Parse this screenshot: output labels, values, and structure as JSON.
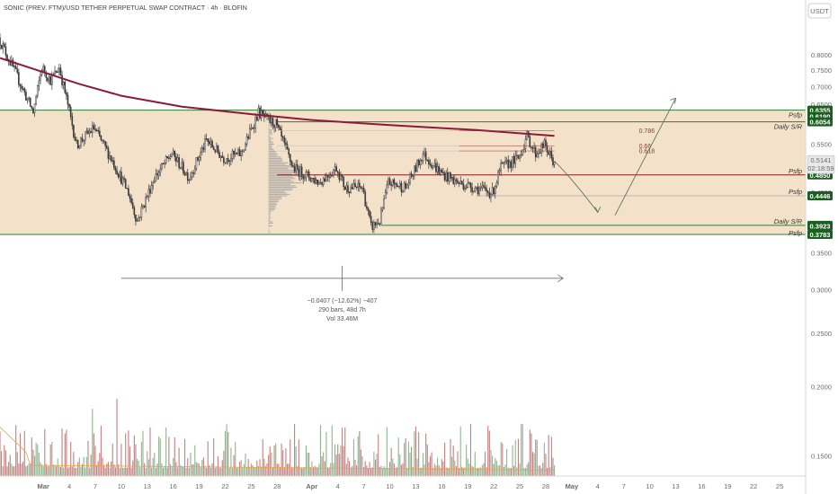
{
  "chart_data": {
    "type": "candlestick",
    "title": "SONIC (PREV. FTM)/USD TETHER PERPETUAL SWAP CONTRACT · 4h · BLOFIN",
    "currency": "USDT",
    "y_scale": "log",
    "ylim": [
      0.138,
      0.92
    ],
    "y_ticks": [
      "0.8000",
      "0.7500",
      "0.7000",
      "0.6500",
      "0.5500",
      "0.5000",
      "0.4500",
      "0.3500",
      "0.3000",
      "0.2500",
      "0.2000",
      "0.1500"
    ],
    "x_ticks": [
      "Mar",
      "4",
      "7",
      "10",
      "13",
      "16",
      "19",
      "22",
      "25",
      "28",
      "Apr",
      "4",
      "7",
      "10",
      "13",
      "16",
      "19",
      "22",
      "25",
      "28",
      "May",
      "4",
      "7",
      "10",
      "13",
      "16",
      "19",
      "22",
      "25"
    ],
    "date_range": [
      "2025-02-24",
      "2025-05-28"
    ],
    "last_candle_date": "2025-04-29",
    "price_path": [
      [
        "2025-02-24",
        0.86
      ],
      [
        "2025-02-26",
        0.74
      ],
      [
        "2025-02-28",
        0.63
      ],
      [
        "2025-03-01",
        0.76
      ],
      [
        "2025-03-02",
        0.72
      ],
      [
        "2025-03-03",
        0.76
      ],
      [
        "2025-03-04",
        0.65
      ],
      [
        "2025-03-05",
        0.55
      ],
      [
        "2025-03-07",
        0.59
      ],
      [
        "2025-03-09",
        0.52
      ],
      [
        "2025-03-11",
        0.45
      ],
      [
        "2025-03-12",
        0.4
      ],
      [
        "2025-03-14",
        0.48
      ],
      [
        "2025-03-16",
        0.53
      ],
      [
        "2025-03-18",
        0.48
      ],
      [
        "2025-03-20",
        0.56
      ],
      [
        "2025-03-22",
        0.52
      ],
      [
        "2025-03-24",
        0.53
      ],
      [
        "2025-03-26",
        0.63
      ],
      [
        "2025-03-27",
        0.61
      ],
      [
        "2025-03-28",
        0.6
      ],
      [
        "2025-03-30",
        0.5
      ],
      [
        "2025-04-02",
        0.47
      ],
      [
        "2025-04-04",
        0.5
      ],
      [
        "2025-04-05",
        0.46
      ],
      [
        "2025-04-07",
        0.46
      ],
      [
        "2025-04-08",
        0.39
      ],
      [
        "2025-04-09",
        0.4
      ],
      [
        "2025-04-10",
        0.47
      ],
      [
        "2025-04-12",
        0.46
      ],
      [
        "2025-04-14",
        0.53
      ],
      [
        "2025-04-16",
        0.49
      ],
      [
        "2025-04-18",
        0.47
      ],
      [
        "2025-04-20",
        0.46
      ],
      [
        "2025-04-22",
        0.45
      ],
      [
        "2025-04-23",
        0.5
      ],
      [
        "2025-04-25",
        0.52
      ],
      [
        "2025-04-26",
        0.57
      ],
      [
        "2025-04-27",
        0.53
      ],
      [
        "2025-04-28",
        0.55
      ],
      [
        "2025-04-29",
        0.514
      ]
    ],
    "moving_average": [
      [
        "2025-02-24",
        0.79
      ],
      [
        "2025-03-01",
        0.745
      ],
      [
        "2025-03-05",
        0.71
      ],
      [
        "2025-03-10",
        0.675
      ],
      [
        "2025-03-17",
        0.645
      ],
      [
        "2025-03-25",
        0.625
      ],
      [
        "2025-04-01",
        0.61
      ],
      [
        "2025-04-10",
        0.597
      ],
      [
        "2025-04-20",
        0.585
      ],
      [
        "2025-04-29",
        0.571
      ]
    ],
    "volume_max": 25000000,
    "last_price": "0.5141",
    "countdown": "02:18:59",
    "range_box": {
      "top": 0.6355,
      "bottom": 0.3783,
      "x_end": "2025-04-29"
    },
    "volume_profile": {
      "start": "2025-03-27",
      "max_width_days": 4.2
    },
    "levels": [
      {
        "price": 0.6355,
        "badge": "0.6355",
        "label": "Psfp",
        "color": "#1b5e20"
      },
      {
        "price": 0.619,
        "badge": "0.6190",
        "label": "",
        "color": "#1b5e20"
      },
      {
        "price": 0.6054,
        "badge": "0.6054",
        "label": "Daily S/R",
        "color": "#1b5e20",
        "line": true,
        "from": "2025-03-28"
      },
      {
        "price": 0.485,
        "badge": "0.4850",
        "label": "Psfp",
        "color": "#1b5e20",
        "line": true,
        "from": "2025-03-28",
        "line_color": "#8b1a1a"
      },
      {
        "price": 0.4446,
        "badge": "0.4446",
        "label": "Psfp",
        "color": "#1b5e20",
        "line": true,
        "from": "2025-04-20",
        "line_color": "#bbbbbb"
      },
      {
        "price": 0.3929,
        "badge": "0.3929",
        "label": "Daily S/R",
        "color": "#1b5e20",
        "line": true,
        "from": "2025-04-09"
      },
      {
        "price": 0.3923,
        "badge": "0.3923",
        "label": "",
        "color": "#1b5e20"
      },
      {
        "price": 0.3783,
        "badge": "0.3783",
        "label": "Psfp",
        "color": "#1b5e20"
      }
    ],
    "fib_levels": [
      {
        "ratio": "0.786",
        "price": 0.583
      },
      {
        "ratio": "0.66",
        "price": 0.547
      },
      {
        "ratio": "0.618",
        "price": 0.536
      }
    ],
    "fib_range": [
      "2025-04-18",
      "2025-04-29"
    ],
    "projection": [
      [
        "2025-04-29",
        0.514
      ],
      [
        "2025-05-04",
        0.415
      ],
      [
        "2025-05-06",
        0.41
      ],
      [
        "2025-05-13",
        0.668
      ]
    ],
    "measure": {
      "from": "2025-03-10",
      "to": "2025-04-30",
      "price_line": 0.315,
      "text1": "−0.0407 (−12.62%) −407",
      "text2": "290 bars, 48d 7h",
      "text3": "Vol 33.46M"
    }
  }
}
